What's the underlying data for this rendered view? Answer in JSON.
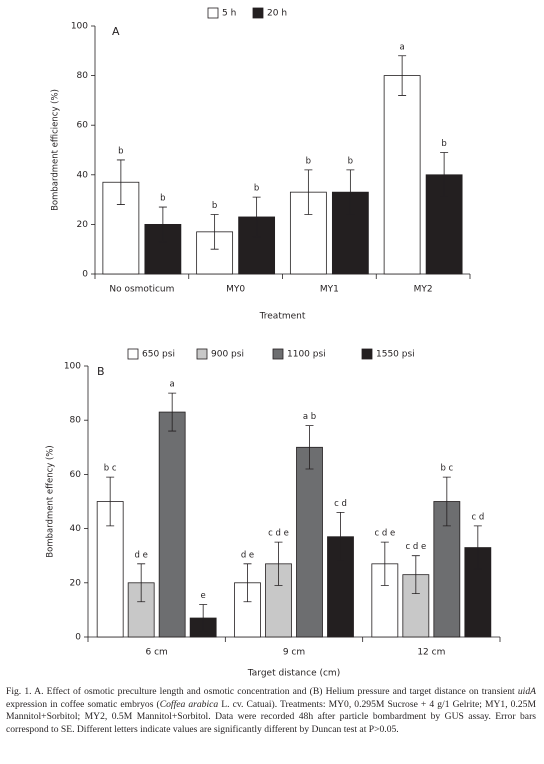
{
  "chart_data": [
    {
      "type": "bar",
      "panel": "A",
      "ylabel": "Bombardment efficiency (%)",
      "xlabel": "Treatment",
      "categories": [
        "No osmoticum",
        "MY0",
        "MY1",
        "MY2"
      ],
      "series": [
        {
          "name": "5 h",
          "color": "#ffffff",
          "values": [
            37,
            17,
            33,
            80
          ],
          "errors": [
            9,
            7,
            9,
            8
          ],
          "labels": [
            "b",
            "b",
            "b",
            "a"
          ]
        },
        {
          "name": "20 h",
          "color": "#231f20",
          "values": [
            20,
            23,
            33,
            40
          ],
          "errors": [
            7,
            8,
            9,
            9
          ],
          "labels": [
            "b",
            "b",
            "b",
            "b"
          ]
        }
      ],
      "ylim": [
        0,
        100
      ],
      "yticks": [
        0,
        20,
        40,
        60,
        80,
        100
      ]
    },
    {
      "type": "bar",
      "panel": "B",
      "ylabel": "Bombardment effency (%)",
      "xlabel": "Target distance (cm)",
      "categories": [
        "6 cm",
        "9 cm",
        "12 cm"
      ],
      "series": [
        {
          "name": "650 psi",
          "color": "#ffffff",
          "values": [
            50,
            20,
            27
          ],
          "errors": [
            9,
            7,
            8
          ],
          "labels": [
            "b c",
            "d e",
            "c d e"
          ]
        },
        {
          "name": "900 psi",
          "color": "#c8c8c8",
          "values": [
            20,
            27,
            23
          ],
          "errors": [
            7,
            8,
            7
          ],
          "labels": [
            "d e",
            "c d e",
            "c d e"
          ]
        },
        {
          "name": "1100 psi",
          "color": "#6d6e70",
          "values": [
            83,
            70,
            50
          ],
          "errors": [
            7,
            8,
            9
          ],
          "labels": [
            "a",
            "a b",
            "b c"
          ]
        },
        {
          "name": "1550 psi",
          "color": "#231f20",
          "values": [
            7,
            37,
            33
          ],
          "errors": [
            5,
            9,
            8
          ],
          "labels": [
            "e",
            "c d",
            "c d"
          ]
        }
      ],
      "ylim": [
        0,
        100
      ],
      "yticks": [
        0,
        20,
        40,
        60,
        80,
        100
      ]
    }
  ],
  "caption": [
    "Fig. 1. A. Effect of osmotic preculture length and osmotic concentration and (B) Helium pressure and target distance on transient ",
    "uidA",
    " expression in coffee somatic embryos (",
    "Coffea arabica",
    " L. cv. Catuai). Treatments: MY0, 0.295M Sucrose + 4 g/1 Gelrite; MY1, 0.25M Mannitol+Sorbitol; MY2, 0.5M Mannitol+Sorbitol. Data were recorded 48h after particle bombardment by GUS assay. Error bars correspond to SE. Different letters indicate values are significantly different by Duncan test at P>0.05."
  ]
}
